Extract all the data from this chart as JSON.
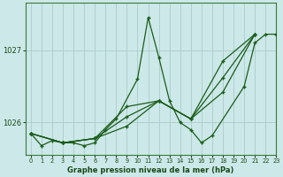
{
  "title": "Graphe pression niveau de la mer (hPa)",
  "bg_color": "#cce8e8",
  "grid_color": "#aacccc",
  "line_color": "#1a5c1a",
  "xlim": [
    -0.5,
    23
  ],
  "ylim": [
    1025.55,
    1027.65
  ],
  "yticks": [
    1026,
    1027
  ],
  "xticks": [
    0,
    1,
    2,
    3,
    4,
    5,
    6,
    7,
    8,
    9,
    10,
    11,
    12,
    13,
    14,
    15,
    16,
    17,
    18,
    19,
    20,
    21,
    22,
    23
  ],
  "line1_x": [
    0,
    1,
    2,
    3,
    4,
    5,
    6,
    7,
    8,
    10,
    11,
    12,
    13,
    14,
    15,
    16,
    17,
    20,
    21,
    22,
    23
  ],
  "line1_y": [
    1025.85,
    1025.68,
    1025.75,
    1025.72,
    1025.72,
    1025.68,
    1025.72,
    1025.9,
    1026.05,
    1026.6,
    1027.45,
    1026.9,
    1026.3,
    1026.0,
    1025.9,
    1025.72,
    1025.82,
    1026.5,
    1027.1,
    1027.22,
    1027.22
  ],
  "line2_x": [
    0,
    3,
    6,
    9,
    12,
    15,
    18,
    21
  ],
  "line2_y": [
    1025.85,
    1025.72,
    1025.78,
    1025.95,
    1026.3,
    1026.05,
    1026.42,
    1027.22
  ],
  "line3_x": [
    0,
    3,
    6,
    9,
    12,
    15,
    18,
    21
  ],
  "line3_y": [
    1025.85,
    1025.72,
    1025.78,
    1026.08,
    1026.3,
    1026.05,
    1026.62,
    1027.22
  ],
  "line4_x": [
    0,
    3,
    6,
    9,
    12,
    15,
    18,
    21
  ],
  "line4_y": [
    1025.85,
    1025.72,
    1025.78,
    1026.22,
    1026.3,
    1026.05,
    1026.85,
    1027.22
  ]
}
